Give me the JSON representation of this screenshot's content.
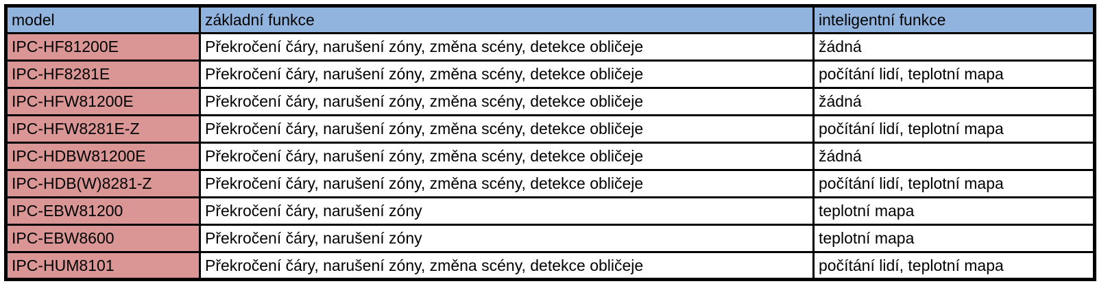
{
  "colors": {
    "header_bg": "#90B4DE",
    "model_bg": "#D99694",
    "cell_bg": "#FFFFFF",
    "border": "#000000"
  },
  "table": {
    "columns": [
      "model",
      "základní funkce",
      "inteligentní funkce"
    ],
    "rows": [
      {
        "model": "IPC-HF81200E",
        "basic": "Překročení čáry, narušení zóny, změna scény, detekce obličeje",
        "intelligent": "žádná"
      },
      {
        "model": "IPC-HF8281E",
        "basic": "Překročení čáry, narušení zóny, změna scény, detekce obličeje",
        "intelligent": "počítání lidí, teplotní mapa"
      },
      {
        "model": "IPC-HFW81200E",
        "basic": "Překročení čáry, narušení zóny, změna scény, detekce obličeje",
        "intelligent": "žádná"
      },
      {
        "model": "IPC-HFW8281E-Z",
        "basic": "Překročení čáry, narušení zóny, změna scény, detekce obličeje",
        "intelligent": "počítání lidí, teplotní mapa"
      },
      {
        "model": "IPC-HDBW81200E",
        "basic": "Překročení čáry, narušení zóny, změna scény, detekce obličeje",
        "intelligent": "žádná"
      },
      {
        "model": "IPC-HDB(W)8281-Z",
        "basic": "Překročení čáry, narušení zóny, změna scény, detekce obličeje",
        "intelligent": "počítání lidí, teplotní mapa"
      },
      {
        "model": "IPC-EBW81200",
        "basic": "Překročení čáry, narušení zóny",
        "intelligent": "teplotní mapa"
      },
      {
        "model": "IPC-EBW8600",
        "basic": "Překročení čáry, narušení zóny",
        "intelligent": "teplotní mapa"
      },
      {
        "model": "IPC-HUM8101",
        "basic": "Překročení čáry, narušení zóny, změna scény, detekce obličeje",
        "intelligent": "počítání lidí, teplotní mapa"
      }
    ]
  }
}
